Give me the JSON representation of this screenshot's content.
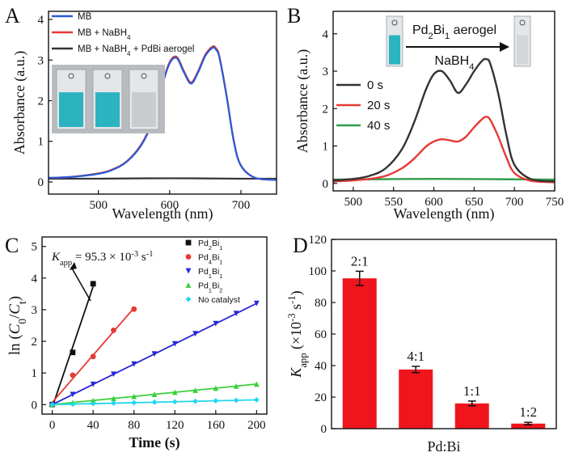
{
  "chart_data": [
    {
      "panel": "A",
      "type": "line",
      "xlabel": "Wavelength (nm)",
      "ylabel": "Absorbance (a.u.)",
      "xlim": [
        430,
        750
      ],
      "ylim": [
        -0.3,
        4.2
      ],
      "xticks": [
        "500",
        "600",
        "700"
      ],
      "yticks": [
        "0",
        "1",
        "2",
        "3",
        "4"
      ],
      "legend_position": "top-left",
      "series": [
        {
          "name": "MB",
          "color": "#2a5bd6",
          "x": [
            430,
            460,
            500,
            520,
            540,
            560,
            575,
            590,
            600,
            610,
            620,
            630,
            640,
            650,
            660,
            665,
            670,
            680,
            690,
            700,
            720,
            750
          ],
          "y": [
            0.1,
            0.12,
            0.2,
            0.3,
            0.5,
            0.9,
            1.45,
            2.4,
            2.92,
            3.05,
            2.7,
            2.42,
            2.7,
            3.1,
            3.3,
            3.26,
            3.05,
            2.1,
            1.0,
            0.4,
            0.1,
            0.05
          ]
        },
        {
          "name": "MB + NaBH4",
          "color": "#e53935",
          "x": [
            430,
            460,
            500,
            520,
            540,
            560,
            575,
            590,
            600,
            610,
            620,
            630,
            640,
            650,
            660,
            665,
            670,
            680,
            690,
            700,
            720,
            750
          ],
          "y": [
            0.1,
            0.12,
            0.21,
            0.31,
            0.51,
            0.92,
            1.48,
            2.43,
            2.95,
            3.08,
            2.73,
            2.45,
            2.73,
            3.13,
            3.33,
            3.29,
            3.08,
            2.12,
            1.02,
            0.41,
            0.1,
            0.05
          ]
        },
        {
          "name": "MB + NaBH4 + PdBi aerogel",
          "color": "#333333",
          "x": [
            430,
            500,
            600,
            700,
            750
          ],
          "y": [
            0.08,
            0.08,
            0.09,
            0.08,
            0.08
          ]
        }
      ],
      "inset_colors": [
        "#2bb3c0",
        "#2bb3c0",
        "#c9cccf"
      ]
    },
    {
      "panel": "B",
      "type": "line",
      "xlabel": "Wavelength (nm)",
      "ylabel": "Absorbance (a.u.)",
      "xlim": [
        475,
        750
      ],
      "ylim": [
        -0.2,
        4.6
      ],
      "xticks": [
        "500",
        "550",
        "600",
        "650",
        "700",
        "750"
      ],
      "yticks": [
        "0",
        "1",
        "2",
        "3",
        "4"
      ],
      "legend_position": "center-left",
      "annotation_top": "Pd2Bi1 aerogel",
      "annotation_bottom": "NaBH4",
      "series": [
        {
          "name": "0 s",
          "color": "#333333",
          "x": [
            475,
            500,
            520,
            540,
            560,
            575,
            590,
            600,
            610,
            620,
            630,
            640,
            650,
            660,
            665,
            670,
            680,
            690,
            700,
            720,
            750
          ],
          "y": [
            0.08,
            0.12,
            0.2,
            0.4,
            0.9,
            1.6,
            2.5,
            2.92,
            3.0,
            2.75,
            2.42,
            2.65,
            3.0,
            3.28,
            3.32,
            3.2,
            2.4,
            1.3,
            0.5,
            0.12,
            0.05
          ]
        },
        {
          "name": "20 s",
          "color": "#e53935",
          "x": [
            475,
            500,
            520,
            540,
            560,
            575,
            590,
            600,
            610,
            620,
            630,
            640,
            650,
            660,
            665,
            670,
            680,
            690,
            700,
            720,
            750
          ],
          "y": [
            0.05,
            0.08,
            0.12,
            0.2,
            0.4,
            0.65,
            0.98,
            1.12,
            1.18,
            1.15,
            1.12,
            1.25,
            1.5,
            1.72,
            1.78,
            1.7,
            1.25,
            0.7,
            0.28,
            0.07,
            0.03
          ]
        },
        {
          "name": "40 s",
          "color": "#2e9e4a",
          "x": [
            475,
            600,
            750
          ],
          "y": [
            0.1,
            0.12,
            0.1
          ]
        }
      ],
      "inset_colors": [
        "#2bb3c0",
        "#d4d6d8"
      ]
    },
    {
      "panel": "C",
      "type": "scatter",
      "xlabel": "Time (s)",
      "ylabel": "ln (C0/Ct)",
      "xlim": [
        -10,
        210
      ],
      "ylim": [
        -0.3,
        5.3
      ],
      "xticks": [
        "0",
        "40",
        "80",
        "120",
        "160",
        "200"
      ],
      "yticks": [
        "0",
        "1",
        "2",
        "3",
        "4",
        "5"
      ],
      "legend_position": "top-right",
      "annotation": "Kapp = 95.3 × 10-3 s-1",
      "series": [
        {
          "name": "Pd2Bi1",
          "color": "#111111",
          "marker": "square",
          "x": [
            0,
            20,
            40
          ],
          "y": [
            0,
            1.65,
            3.82
          ]
        },
        {
          "name": "Pd4Bi1",
          "color": "#e53935",
          "marker": "circle",
          "x": [
            0,
            20,
            40,
            60,
            80
          ],
          "y": [
            0,
            0.93,
            1.52,
            2.35,
            3.02
          ]
        },
        {
          "name": "Pd1Bi1",
          "color": "#2727d6",
          "marker": "triangle-down",
          "x": [
            0,
            20,
            40,
            60,
            80,
            100,
            120,
            140,
            160,
            180,
            200
          ],
          "y": [
            0,
            0.32,
            0.64,
            0.96,
            1.28,
            1.6,
            1.92,
            2.24,
            2.56,
            2.88,
            3.2
          ]
        },
        {
          "name": "Pd1Bi2",
          "color": "#3ad13a",
          "marker": "triangle-up",
          "x": [
            0,
            20,
            40,
            60,
            80,
            100,
            120,
            140,
            160,
            180,
            200
          ],
          "y": [
            0,
            0.065,
            0.13,
            0.195,
            0.26,
            0.325,
            0.39,
            0.455,
            0.52,
            0.585,
            0.65
          ]
        },
        {
          "name": "No catalyst",
          "color": "#22d6ee",
          "marker": "diamond",
          "x": [
            0,
            20,
            40,
            60,
            80,
            100,
            120,
            140,
            160,
            180,
            200
          ],
          "y": [
            0,
            0.015,
            0.03,
            0.045,
            0.06,
            0.075,
            0.09,
            0.105,
            0.12,
            0.135,
            0.15
          ]
        }
      ]
    },
    {
      "panel": "D",
      "type": "bar",
      "xlabel": "Pd:Bi",
      "ylabel": "Kapp (×10-3 s-1)",
      "ylim": [
        0,
        120
      ],
      "yticks": [
        "0",
        "20",
        "40",
        "60",
        "80",
        "100",
        "120"
      ],
      "categories": [
        "2:1",
        "4:1",
        "1:1",
        "1:2"
      ],
      "values": [
        95.3,
        37.5,
        16.0,
        3.2
      ],
      "errors": [
        4.5,
        2.0,
        1.5,
        0.8
      ],
      "bar_color": "#f0141c"
    }
  ],
  "labels": {
    "panel_a": "A",
    "panel_b": "B",
    "panel_c": "C",
    "panel_d": "D",
    "b_time_0": "0 s",
    "b_time_20": "20 s",
    "b_time_40": "40 s"
  }
}
